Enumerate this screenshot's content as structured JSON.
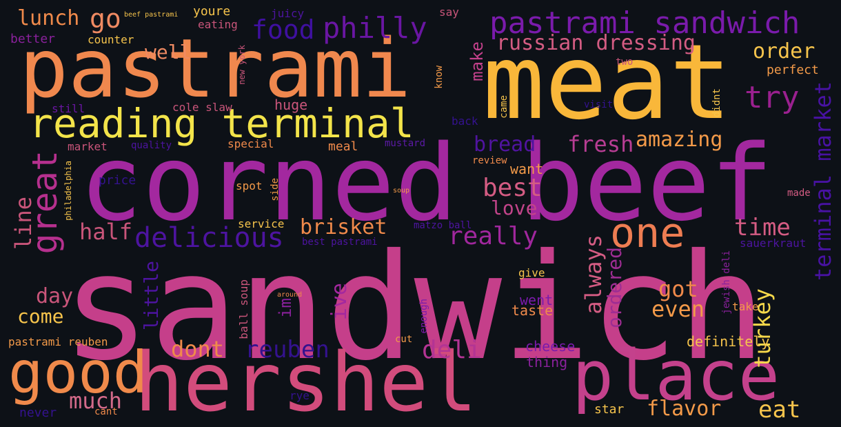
{
  "word_cloud": {
    "background": "#0d1117",
    "palette": "plasma",
    "words": [
      {
        "text": "sandwich",
        "color": "#c53f8a"
      },
      {
        "text": "corned beef",
        "color": "#a3289f"
      },
      {
        "text": "hershel",
        "color": "#d24c7c"
      },
      {
        "text": "meat",
        "color": "#f9b73a"
      },
      {
        "text": "pastrami",
        "color": "#f0884e"
      },
      {
        "text": "place",
        "color": "#c4418c"
      },
      {
        "text": "good",
        "color": "#f08a4b"
      },
      {
        "text": "reading terminal",
        "color": "#f3e44a"
      },
      {
        "text": "pastrami sandwich",
        "color": "#7a1bab"
      },
      {
        "text": "great",
        "color": "#b6308e"
      },
      {
        "text": "one",
        "color": "#ee7d52"
      },
      {
        "text": "delicious",
        "color": "#4d14a0"
      },
      {
        "text": "philly",
        "color": "#6a16a3"
      },
      {
        "text": "food",
        "color": "#3f10a0"
      },
      {
        "text": "terminal market",
        "color": "#4812a3"
      },
      {
        "text": "try",
        "color": "#9a208f"
      },
      {
        "text": "russian dressing",
        "color": "#d45c83"
      },
      {
        "text": "order",
        "color": "#f6c44c"
      },
      {
        "text": "best",
        "color": "#d45c83"
      },
      {
        "text": "fresh",
        "color": "#b73d93"
      },
      {
        "text": "bread",
        "color": "#50149f"
      },
      {
        "text": "amazing",
        "color": "#f39a49"
      },
      {
        "text": "time",
        "color": "#d45c83"
      },
      {
        "text": "really",
        "color": "#a0279d"
      },
      {
        "text": "brisket",
        "color": "#f08a4b"
      },
      {
        "text": "half",
        "color": "#c9557a"
      },
      {
        "text": "line",
        "color": "#c9557a"
      },
      {
        "text": "deli",
        "color": "#b33494"
      },
      {
        "text": "reuben",
        "color": "#34128f"
      },
      {
        "text": "dont",
        "color": "#f08a4b"
      },
      {
        "text": "much",
        "color": "#d46a8a"
      },
      {
        "text": "go",
        "color": "#ef8a62"
      },
      {
        "text": "lunch",
        "color": "#f08a4b"
      },
      {
        "text": "well",
        "color": "#ef8a62"
      },
      {
        "text": "love",
        "color": "#c2448a"
      },
      {
        "text": "got",
        "color": "#f08a4b"
      },
      {
        "text": "even",
        "color": "#f39a49"
      },
      {
        "text": "turkey",
        "color": "#f6d84a"
      },
      {
        "text": "always",
        "color": "#d45c83"
      },
      {
        "text": "ordered",
        "color": "#9e2d93"
      },
      {
        "text": "eat",
        "color": "#f6c44c"
      },
      {
        "text": "flavor",
        "color": "#f39a49"
      },
      {
        "text": "come",
        "color": "#f6c44c"
      },
      {
        "text": "day",
        "color": "#c9557a"
      },
      {
        "text": "little",
        "color": "#4d14a0"
      },
      {
        "text": "im",
        "color": "#8a219c"
      },
      {
        "text": "ive",
        "color": "#a3289f"
      },
      {
        "text": "make",
        "color": "#c4418c"
      },
      {
        "text": "definitely",
        "color": "#f6c44c"
      },
      {
        "text": "want",
        "color": "#f39a49"
      },
      {
        "text": "taste",
        "color": "#f08a4b"
      },
      {
        "text": "went",
        "color": "#7a1bab"
      },
      {
        "text": "cheese",
        "color": "#7a1bab"
      },
      {
        "text": "thing",
        "color": "#8a219c"
      },
      {
        "text": "meal",
        "color": "#f08a4b"
      },
      {
        "text": "huge",
        "color": "#c9557a"
      },
      {
        "text": "cole slaw",
        "color": "#c9557a"
      },
      {
        "text": "special",
        "color": "#f08a4b"
      },
      {
        "text": "market",
        "color": "#c9557a"
      },
      {
        "text": "quality",
        "color": "#4d14a0"
      },
      {
        "text": "mustard",
        "color": "#5c1aa6"
      },
      {
        "text": "ball soup",
        "color": "#c9557a"
      },
      {
        "text": "service",
        "color": "#f6c44c"
      },
      {
        "text": "best pastrami",
        "color": "#4d14a0"
      },
      {
        "text": "matzo ball",
        "color": "#4d14a0"
      },
      {
        "text": "youre",
        "color": "#f6c44c"
      },
      {
        "text": "eating",
        "color": "#c9557a"
      },
      {
        "text": "juicy",
        "color": "#4d14a0"
      },
      {
        "text": "say",
        "color": "#c9557a"
      },
      {
        "text": "counter",
        "color": "#f6c44c"
      },
      {
        "text": "beef pastrami",
        "color": "#f6c44c"
      },
      {
        "text": "better",
        "color": "#8a219c"
      },
      {
        "text": "still",
        "color": "#6a16a3"
      },
      {
        "text": "new york",
        "color": "#c9557a"
      },
      {
        "text": "perfect",
        "color": "#f39a49"
      },
      {
        "text": "two",
        "color": "#c9557a"
      },
      {
        "text": "know",
        "color": "#f39a49"
      },
      {
        "text": "visit",
        "color": "#34128f"
      },
      {
        "text": "came",
        "color": "#f6c44c"
      },
      {
        "text": "didnt",
        "color": "#f6c44c"
      },
      {
        "text": "back",
        "color": "#34128f"
      },
      {
        "text": "review",
        "color": "#f08a4b"
      },
      {
        "text": "price",
        "color": "#34128f"
      },
      {
        "text": "philadelphia",
        "color": "#f6c44c"
      },
      {
        "text": "spot",
        "color": "#f39a49"
      },
      {
        "text": "side",
        "color": "#f39a49"
      },
      {
        "text": "soup",
        "color": "#f39a49"
      },
      {
        "text": "made",
        "color": "#d45c83"
      },
      {
        "text": "sauerkraut",
        "color": "#4d14a0"
      },
      {
        "text": "jewish deli",
        "color": "#8a219c"
      },
      {
        "text": "give",
        "color": "#f6c44c"
      },
      {
        "text": "around",
        "color": "#f08a4b"
      },
      {
        "text": "take",
        "color": "#f39a49"
      },
      {
        "text": "pastrami reuben",
        "color": "#f39a49"
      },
      {
        "text": "cut",
        "color": "#f39a49"
      },
      {
        "text": "enough",
        "color": "#7a1bab"
      },
      {
        "text": "rye",
        "color": "#34128f"
      },
      {
        "text": "never",
        "color": "#34128f"
      },
      {
        "text": "cant",
        "color": "#f08a4b"
      },
      {
        "text": "star",
        "color": "#f6c44c"
      }
    ]
  }
}
